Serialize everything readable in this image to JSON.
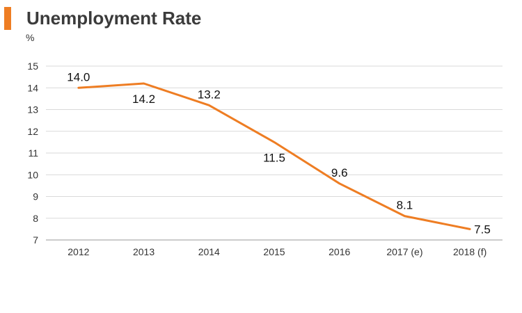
{
  "chart_data": {
    "type": "line",
    "title": "Unemployment Rate",
    "ylabel": "%",
    "xlabel": "",
    "categories": [
      "2012",
      "2013",
      "2014",
      "2015",
      "2016",
      "2017 (e)",
      "2018 (f)"
    ],
    "series": [
      {
        "values": [
          14.0,
          14.2,
          13.2,
          11.5,
          9.6,
          8.1,
          7.5
        ],
        "color": "#ee7d23"
      }
    ],
    "data_labels": [
      "14.0",
      "14.2",
      "13.2",
      "11.5",
      "9.6",
      "8.1",
      "7.5"
    ],
    "ylim": [
      7,
      15
    ],
    "yticks": [
      "7",
      "8",
      "9",
      "10",
      "11",
      "12",
      "13",
      "14",
      "15"
    ],
    "grid": true,
    "legend": "none"
  }
}
